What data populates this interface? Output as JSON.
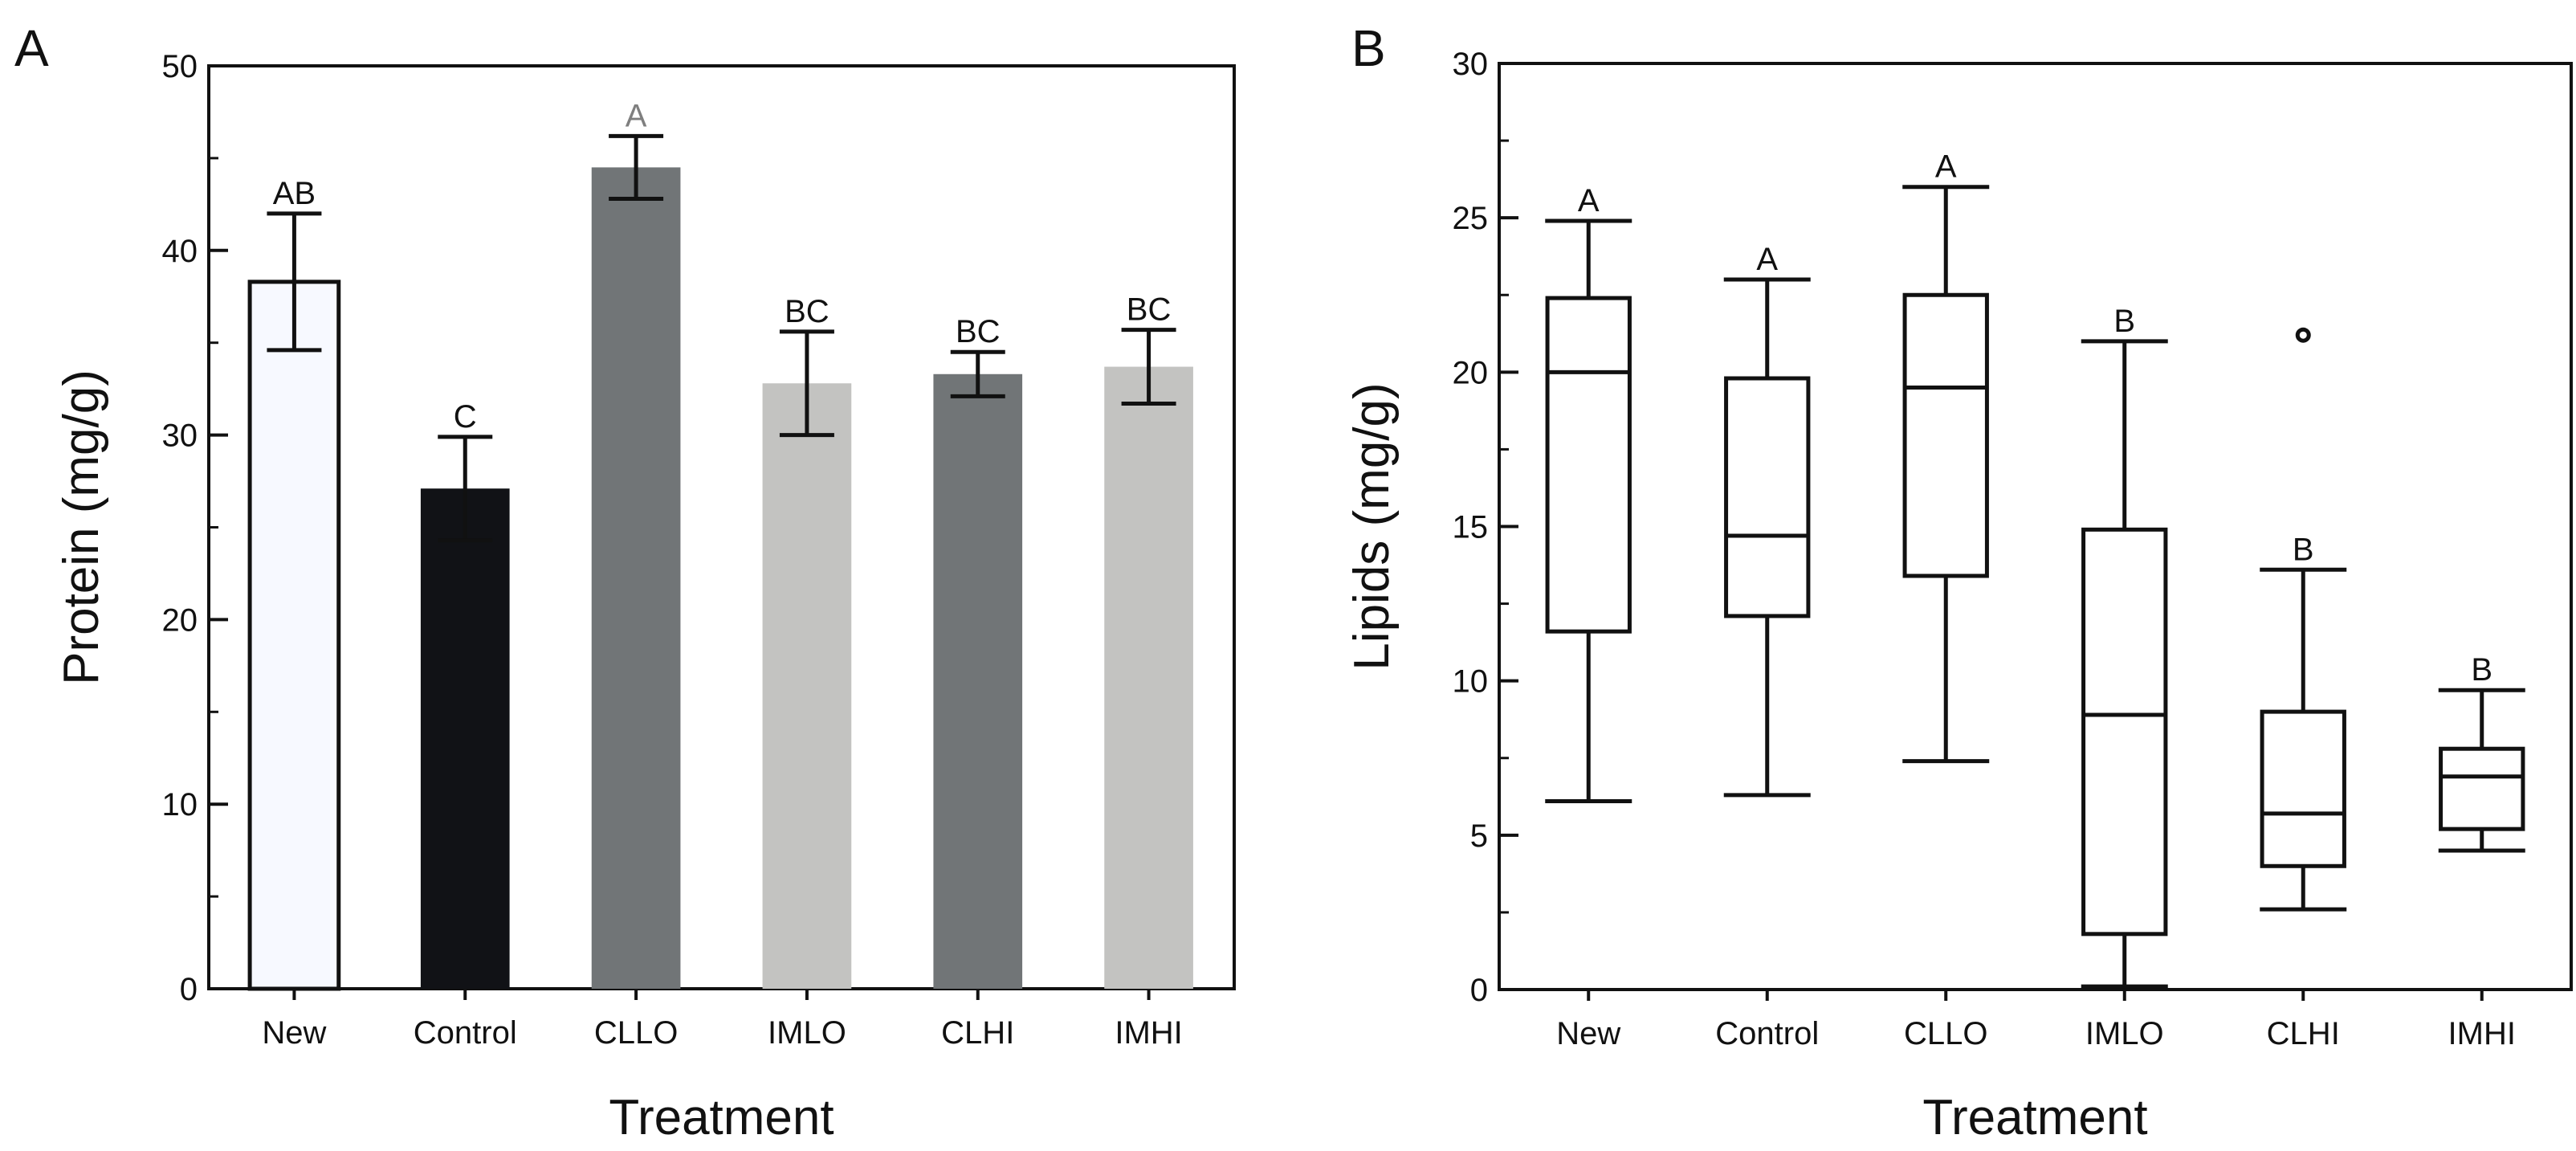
{
  "panel_labels": {
    "a": "A",
    "b": "B"
  },
  "colors": {
    "axis": "#111111",
    "new": "#f7f9ff",
    "control": "#111216",
    "dark_gray": "#717577",
    "light_gray": "#c3c3c1",
    "sig_gray": "#7f7f7f"
  },
  "chart_data": [
    {
      "type": "bar",
      "panel": "A",
      "title": "",
      "xlabel": "Treatment",
      "ylabel": "Protein (mg/g)",
      "ylim": [
        0,
        50
      ],
      "yticks": [
        0,
        10,
        20,
        30,
        40,
        50
      ],
      "ytick_labels": [
        "0",
        "10",
        "20",
        "30",
        "40",
        "50"
      ],
      "categories": [
        "New",
        "Control",
        "CLLO",
        "IMLO",
        "CLHI",
        "IMHI"
      ],
      "values": [
        38.3,
        27.1,
        44.5,
        32.8,
        33.3,
        33.7
      ],
      "errors": [
        3.7,
        2.8,
        1.7,
        2.8,
        1.2,
        2.0
      ],
      "significance": [
        "AB",
        "C",
        "A",
        "BC",
        "BC",
        "BC"
      ],
      "bar_colors": [
        "#f7f9ff",
        "#111216",
        "#717577",
        "#c3c3c1",
        "#717577",
        "#c3c3c1"
      ],
      "significance_colors": [
        "#111111",
        "#111111",
        "#7f7f7f",
        "#111111",
        "#111111",
        "#111111"
      ]
    },
    {
      "type": "box",
      "panel": "B",
      "title": "",
      "xlabel": "Treatment",
      "ylabel": "Lipids (mg/g)",
      "ylim": [
        0,
        30
      ],
      "yticks": [
        0,
        5,
        10,
        15,
        20,
        25,
        30
      ],
      "ytick_labels": [
        "0",
        "5",
        "10",
        "15",
        "20",
        "25",
        "30"
      ],
      "categories": [
        "New",
        "Control",
        "CLLO",
        "IMLO",
        "CLHI",
        "IMHI"
      ],
      "boxes": [
        {
          "min": 6.1,
          "q1": 11.6,
          "median": 20.0,
          "q3": 22.4,
          "max": 24.9,
          "outliers": []
        },
        {
          "min": 6.3,
          "q1": 12.1,
          "median": 14.7,
          "q3": 19.8,
          "max": 23.0,
          "outliers": []
        },
        {
          "min": 7.4,
          "q1": 13.4,
          "median": 19.5,
          "q3": 22.5,
          "max": 26.0,
          "outliers": []
        },
        {
          "min": 0.1,
          "q1": 1.8,
          "median": 8.9,
          "q3": 14.9,
          "max": 21.0,
          "outliers": []
        },
        {
          "min": 2.6,
          "q1": 4.0,
          "median": 5.7,
          "q3": 9.0,
          "max": 13.6,
          "outliers": [
            21.2
          ]
        },
        {
          "min": 4.5,
          "q1": 5.2,
          "median": 6.9,
          "q3": 7.8,
          "max": 9.7,
          "outliers": []
        }
      ],
      "significance": [
        "A",
        "A",
        "A",
        "B",
        "B",
        "B"
      ]
    }
  ]
}
